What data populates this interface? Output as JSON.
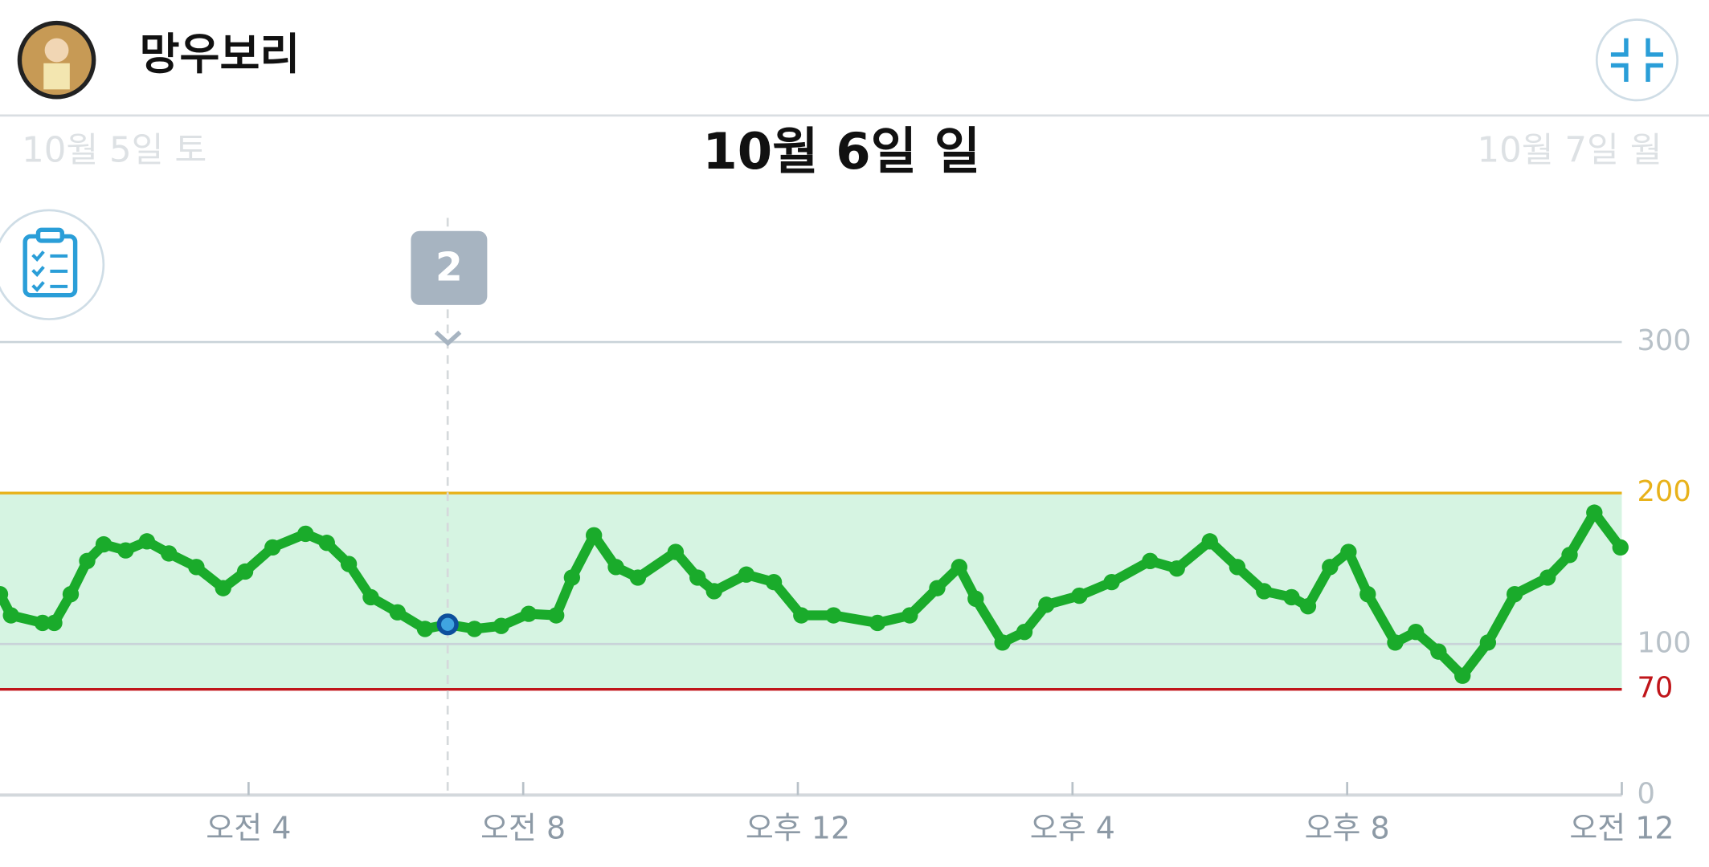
{
  "header": {
    "username": "망우보리"
  },
  "nav": {
    "prev_day": "10월 5일 토",
    "current_day": "10월 6일 일",
    "next_day": "10월 7일 월"
  },
  "marker": {
    "label": "2"
  },
  "chart_data": {
    "type": "line",
    "x": [
      0.38,
      0.54,
      1.0,
      1.17,
      1.41,
      1.65,
      1.89,
      2.21,
      2.52,
      2.84,
      3.24,
      3.63,
      3.95,
      4.35,
      4.83,
      5.14,
      5.46,
      5.78,
      6.17,
      6.57,
      6.9,
      7.29,
      7.68,
      8.08,
      8.48,
      8.71,
      9.03,
      9.35,
      9.67,
      10.22,
      10.54,
      10.78,
      11.25,
      11.65,
      12.05,
      12.52,
      13.16,
      13.63,
      14.03,
      14.35,
      14.59,
      14.98,
      15.3,
      15.62,
      16.1,
      16.57,
      17.13,
      17.52,
      18.0,
      18.4,
      18.79,
      19.19,
      19.43,
      19.75,
      20.02,
      20.3,
      20.7,
      21.0,
      21.33,
      21.68,
      22.05,
      22.44,
      22.92,
      23.24,
      23.6,
      23.98
    ],
    "series": [
      {
        "color": "#1aab2b",
        "values": [
          133,
          119,
          114,
          114,
          133,
          155,
          166,
          162,
          168,
          160,
          151,
          137,
          148,
          164,
          173,
          167,
          153,
          131,
          121,
          110,
          113,
          110,
          112,
          120,
          119,
          144,
          172,
          151,
          144,
          161,
          144,
          135,
          146,
          141,
          119,
          119,
          114,
          119,
          137,
          151,
          130,
          101,
          108,
          126,
          132,
          141,
          155,
          150,
          168,
          151,
          135,
          131,
          125,
          151,
          161,
          133,
          101,
          108,
          95,
          79,
          101,
          133,
          144,
          159,
          187,
          164
        ]
      }
    ],
    "xlim": [
      0.38,
      24
    ],
    "xticks": [
      {
        "value": 4,
        "label": "오전 4"
      },
      {
        "value": 8,
        "label": "오전 8"
      },
      {
        "value": 12,
        "label": "오후 12"
      },
      {
        "value": 16,
        "label": "오후 4"
      },
      {
        "value": 20,
        "label": "오후 8"
      },
      {
        "value": 24,
        "label": "오전 12"
      }
    ],
    "ylim": [
      0,
      300
    ],
    "yticks": [
      0,
      100,
      300
    ],
    "low_threshold": 70,
    "low_color": "#c0151a",
    "high_threshold": 200,
    "high_color": "#e8b21a",
    "range_color": "#d6f4e2",
    "cursor": 6.9,
    "grid": true
  }
}
